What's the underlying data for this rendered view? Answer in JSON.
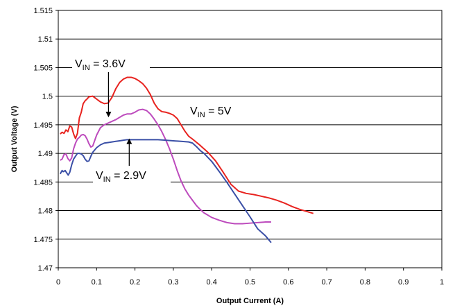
{
  "chart_data": {
    "type": "line",
    "title": "",
    "xlabel": "Output Current (A)",
    "ylabel": "Output Voltage (V)",
    "xlim": [
      0,
      1
    ],
    "ylim": [
      1.47,
      1.515
    ],
    "x_ticks": [
      "0",
      "0.1",
      "0.2",
      "0.3",
      "0.4",
      "0.5",
      "0.6",
      "0.7",
      "0.8",
      "0.9",
      "1"
    ],
    "y_ticks": [
      "1.47",
      "1.475",
      "1.48",
      "1.485",
      "1.49",
      "1.495",
      "1.5",
      "1.505",
      "1.51",
      "1.515"
    ],
    "grid": "horizontal",
    "legend": "none",
    "series": [
      {
        "name": "VIN = 5V",
        "color": "#e8231f",
        "points": [
          [
            0.005,
            1.4934
          ],
          [
            0.01,
            1.4937
          ],
          [
            0.015,
            1.4935
          ],
          [
            0.02,
            1.4941
          ],
          [
            0.025,
            1.4938
          ],
          [
            0.03,
            1.4948
          ],
          [
            0.035,
            1.4946
          ],
          [
            0.04,
            1.4934
          ],
          [
            0.045,
            1.4926
          ],
          [
            0.05,
            1.4935
          ],
          [
            0.055,
            1.4962
          ],
          [
            0.06,
            1.4972
          ],
          [
            0.065,
            1.4987
          ],
          [
            0.07,
            1.4992
          ],
          [
            0.075,
            1.4995
          ],
          [
            0.08,
            1.4999
          ],
          [
            0.09,
            1.5
          ],
          [
            0.1,
            1.4995
          ],
          [
            0.11,
            1.499
          ],
          [
            0.12,
            1.4987
          ],
          [
            0.13,
            1.4988
          ],
          [
            0.14,
            1.4998
          ],
          [
            0.15,
            1.5013
          ],
          [
            0.16,
            1.5024
          ],
          [
            0.17,
            1.503
          ],
          [
            0.18,
            1.5033
          ],
          [
            0.19,
            1.5033
          ],
          [
            0.2,
            1.5031
          ],
          [
            0.21,
            1.5027
          ],
          [
            0.22,
            1.5022
          ],
          [
            0.23,
            1.5014
          ],
          [
            0.24,
            1.5003
          ],
          [
            0.25,
            1.4988
          ],
          [
            0.26,
            1.4978
          ],
          [
            0.27,
            1.4973
          ],
          [
            0.28,
            1.4972
          ],
          [
            0.29,
            1.497
          ],
          [
            0.3,
            1.4967
          ],
          [
            0.31,
            1.4961
          ],
          [
            0.32,
            1.495
          ],
          [
            0.33,
            1.4939
          ],
          [
            0.34,
            1.493
          ],
          [
            0.35,
            1.4925
          ],
          [
            0.37,
            1.4914
          ],
          [
            0.39,
            1.4902
          ],
          [
            0.41,
            1.4887
          ],
          [
            0.43,
            1.4867
          ],
          [
            0.45,
            1.4846
          ],
          [
            0.47,
            1.4834
          ],
          [
            0.49,
            1.483
          ],
          [
            0.51,
            1.4828
          ],
          [
            0.53,
            1.4825
          ],
          [
            0.55,
            1.4822
          ],
          [
            0.57,
            1.4818
          ],
          [
            0.59,
            1.4813
          ],
          [
            0.61,
            1.4807
          ],
          [
            0.63,
            1.4802
          ],
          [
            0.65,
            1.4798
          ],
          [
            0.665,
            1.4795
          ]
        ]
      },
      {
        "name": "VIN = 3.6V",
        "color": "#bd4bbd",
        "points": [
          [
            0.005,
            1.4888
          ],
          [
            0.01,
            1.489
          ],
          [
            0.015,
            1.4898
          ],
          [
            0.02,
            1.4899
          ],
          [
            0.025,
            1.4891
          ],
          [
            0.03,
            1.4887
          ],
          [
            0.035,
            1.4892
          ],
          [
            0.04,
            1.4908
          ],
          [
            0.045,
            1.4918
          ],
          [
            0.05,
            1.4925
          ],
          [
            0.055,
            1.4928
          ],
          [
            0.06,
            1.4932
          ],
          [
            0.065,
            1.4933
          ],
          [
            0.07,
            1.4931
          ],
          [
            0.075,
            1.4925
          ],
          [
            0.08,
            1.4917
          ],
          [
            0.085,
            1.4911
          ],
          [
            0.09,
            1.4913
          ],
          [
            0.1,
            1.4932
          ],
          [
            0.11,
            1.4945
          ],
          [
            0.12,
            1.495
          ],
          [
            0.13,
            1.4953
          ],
          [
            0.14,
            1.4956
          ],
          [
            0.15,
            1.4959
          ],
          [
            0.16,
            1.4963
          ],
          [
            0.17,
            1.4967
          ],
          [
            0.18,
            1.4969
          ],
          [
            0.19,
            1.4969
          ],
          [
            0.2,
            1.4972
          ],
          [
            0.21,
            1.4976
          ],
          [
            0.22,
            1.4977
          ],
          [
            0.23,
            1.4975
          ],
          [
            0.24,
            1.4969
          ],
          [
            0.25,
            1.496
          ],
          [
            0.26,
            1.495
          ],
          [
            0.27,
            1.4938
          ],
          [
            0.28,
            1.4924
          ],
          [
            0.29,
            1.4908
          ],
          [
            0.3,
            1.489
          ],
          [
            0.31,
            1.487
          ],
          [
            0.32,
            1.4852
          ],
          [
            0.33,
            1.4838
          ],
          [
            0.34,
            1.4827
          ],
          [
            0.35,
            1.4818
          ],
          [
            0.36,
            1.4809
          ],
          [
            0.37,
            1.4802
          ],
          [
            0.38,
            1.4796
          ],
          [
            0.39,
            1.4792
          ],
          [
            0.4,
            1.4788
          ],
          [
            0.42,
            1.4783
          ],
          [
            0.44,
            1.4779
          ],
          [
            0.46,
            1.4777
          ],
          [
            0.48,
            1.4777
          ],
          [
            0.5,
            1.4778
          ],
          [
            0.52,
            1.4779
          ],
          [
            0.54,
            1.478
          ],
          [
            0.555,
            1.478
          ]
        ]
      },
      {
        "name": "VIN = 2.9V",
        "color": "#3a4fa6",
        "points": [
          [
            0.005,
            1.4864
          ],
          [
            0.01,
            1.487
          ],
          [
            0.013,
            1.4868
          ],
          [
            0.018,
            1.487
          ],
          [
            0.022,
            1.4866
          ],
          [
            0.026,
            1.4862
          ],
          [
            0.03,
            1.4867
          ],
          [
            0.035,
            1.488
          ],
          [
            0.04,
            1.489
          ],
          [
            0.045,
            1.4895
          ],
          [
            0.05,
            1.49
          ],
          [
            0.055,
            1.49
          ],
          [
            0.06,
            1.4899
          ],
          [
            0.065,
            1.4896
          ],
          [
            0.07,
            1.489
          ],
          [
            0.075,
            1.4886
          ],
          [
            0.08,
            1.4887
          ],
          [
            0.085,
            1.4895
          ],
          [
            0.09,
            1.4902
          ],
          [
            0.1,
            1.491
          ],
          [
            0.11,
            1.4915
          ],
          [
            0.12,
            1.4918
          ],
          [
            0.13,
            1.4919
          ],
          [
            0.14,
            1.492
          ],
          [
            0.15,
            1.4921
          ],
          [
            0.16,
            1.4922
          ],
          [
            0.17,
            1.4923
          ],
          [
            0.18,
            1.4924
          ],
          [
            0.2,
            1.4924
          ],
          [
            0.22,
            1.4924
          ],
          [
            0.24,
            1.4924
          ],
          [
            0.26,
            1.4924
          ],
          [
            0.28,
            1.4923
          ],
          [
            0.3,
            1.4922
          ],
          [
            0.32,
            1.4921
          ],
          [
            0.34,
            1.492
          ],
          [
            0.35,
            1.4918
          ],
          [
            0.36,
            1.4912
          ],
          [
            0.37,
            1.4905
          ],
          [
            0.38,
            1.49
          ],
          [
            0.39,
            1.4893
          ],
          [
            0.4,
            1.4886
          ],
          [
            0.42,
            1.4868
          ],
          [
            0.44,
            1.4849
          ],
          [
            0.46,
            1.4829
          ],
          [
            0.48,
            1.4809
          ],
          [
            0.5,
            1.4789
          ],
          [
            0.52,
            1.4768
          ],
          [
            0.54,
            1.4756
          ],
          [
            0.555,
            1.4744
          ]
        ]
      }
    ],
    "annotations": [
      {
        "id": "vin-3-6",
        "main": "V",
        "sub": "IN",
        "rest": " = 3.6V",
        "arrow_to": [
          0.131,
          1.4963
        ]
      },
      {
        "id": "vin-5",
        "main": "V",
        "sub": "IN",
        "rest": " = 5V"
      },
      {
        "id": "vin-2-9",
        "main": "V",
        "sub": "IN",
        "rest": " = 2.9V",
        "arrow_to": [
          0.185,
          1.4926
        ]
      }
    ]
  }
}
